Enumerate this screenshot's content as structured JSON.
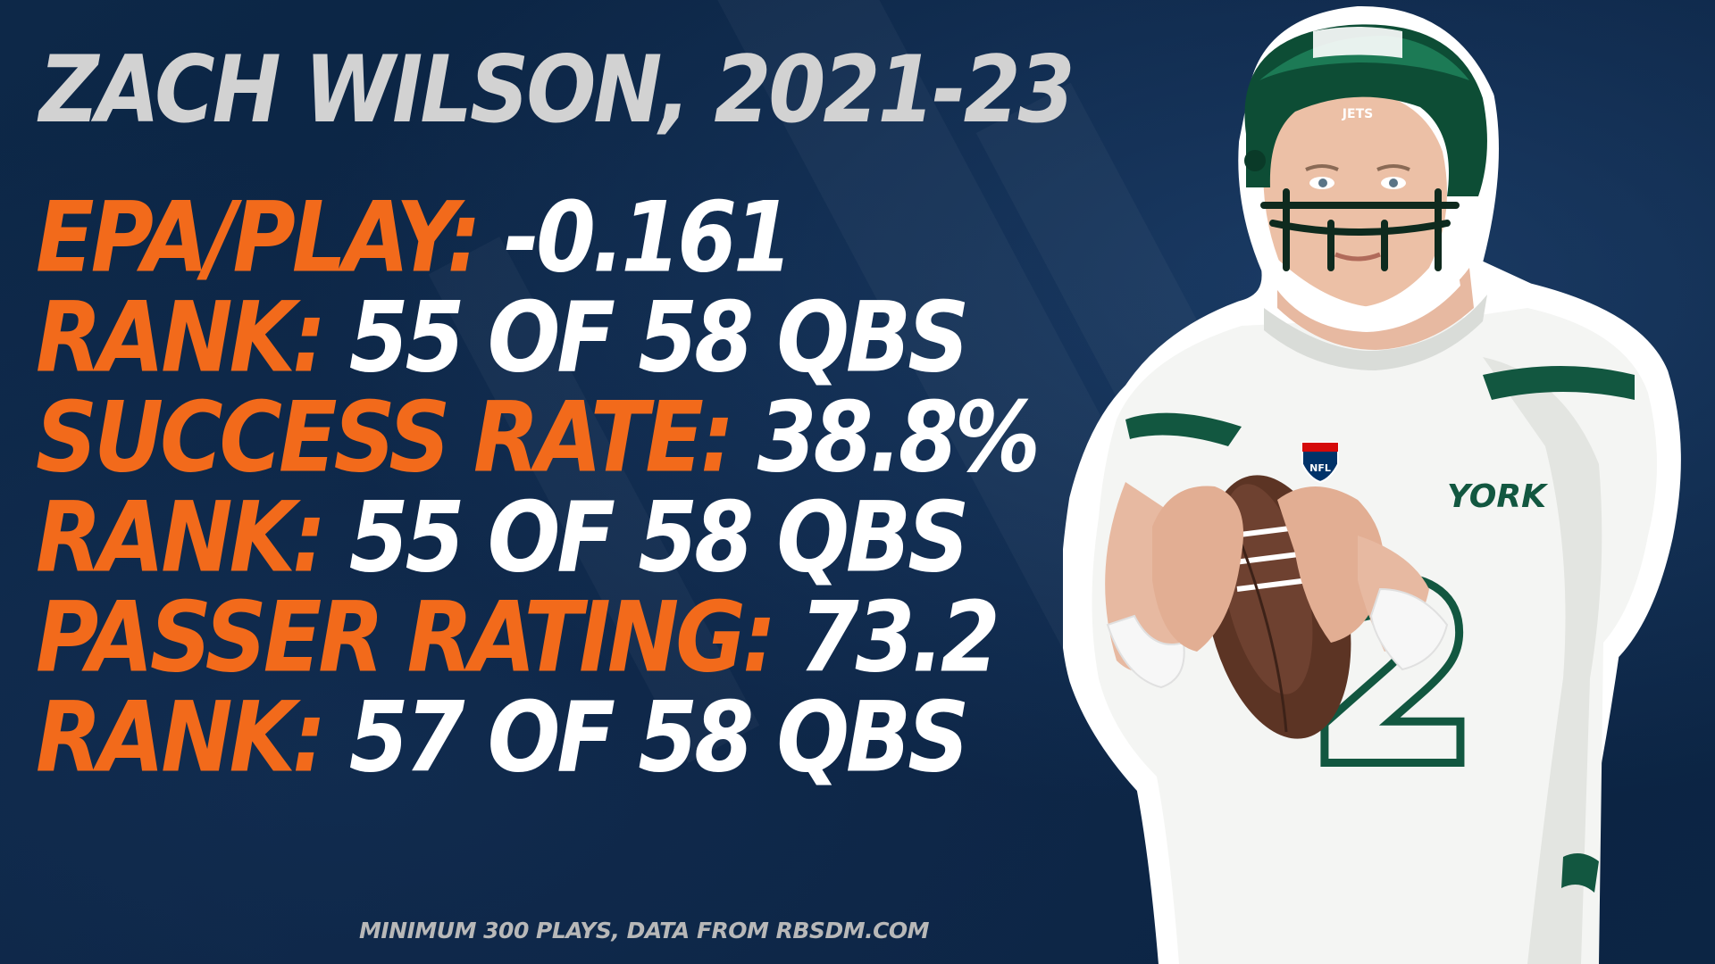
{
  "title": "ZACH WILSON, 2021-23",
  "stats": [
    {
      "label": "EPA/PLAY:",
      "value": "-0.161"
    },
    {
      "label": "RANK:",
      "value": "55 OF 58 QBS"
    },
    {
      "label": "SUCCESS RATE:",
      "value": "38.8%"
    },
    {
      "label": "RANK:",
      "value": "55 OF 58 QBS"
    },
    {
      "label": "PASSER RATING:",
      "value": "73.2"
    },
    {
      "label": "RANK:",
      "value": "57 OF 58 QBS"
    }
  ],
  "footnote": "MINIMUM 300 PLAYS, DATA FROM RBSDM.COM",
  "player": {
    "helmet_text": "JETS",
    "jersey_text": "YORK",
    "jersey_number": "2",
    "shield_text": "NFL"
  },
  "colors": {
    "background": "#0b2341",
    "label": "#f26a1b",
    "value": "#ffffff",
    "title": "#d2d2d2",
    "jets_green": "#125740"
  }
}
